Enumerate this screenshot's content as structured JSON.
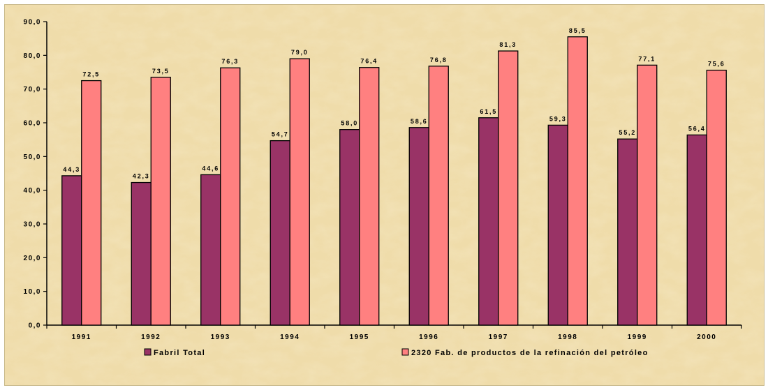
{
  "chart_data": {
    "type": "bar",
    "categories": [
      "1991",
      "1992",
      "1993",
      "1994",
      "1995",
      "1996",
      "1997",
      "1998",
      "1999",
      "2000"
    ],
    "series": [
      {
        "name": "Fabril Total",
        "color": "#993366",
        "values": [
          44.3,
          42.3,
          44.6,
          54.7,
          58.0,
          58.6,
          61.5,
          59.3,
          55.2,
          56.4
        ],
        "labels": [
          "44,3",
          "42,3",
          "44,6",
          "54,7",
          "58,0",
          "58,6",
          "61,5",
          "59,3",
          "55,2",
          "56,4"
        ]
      },
      {
        "name": "2320 Fab. de productos de la refinación del petróleo",
        "color": "#ff8080",
        "values": [
          72.5,
          73.5,
          76.3,
          79.0,
          76.4,
          76.8,
          81.3,
          85.5,
          77.1,
          75.6
        ],
        "labels": [
          "72,5",
          "73,5",
          "76,3",
          "79,0",
          "76,4",
          "76,8",
          "81,3",
          "85,5",
          "77,1",
          "75,6"
        ]
      }
    ],
    "y_ticks": [
      "0,0",
      "10,0",
      "20,0",
      "30,0",
      "40,0",
      "50,0",
      "60,0",
      "70,0",
      "80,0",
      "90,0"
    ],
    "ylim": [
      0,
      90
    ],
    "title": "",
    "xlabel": "",
    "ylabel": "",
    "grid": false,
    "legend_position": "bottom",
    "background_color": "#ecd9a3"
  }
}
